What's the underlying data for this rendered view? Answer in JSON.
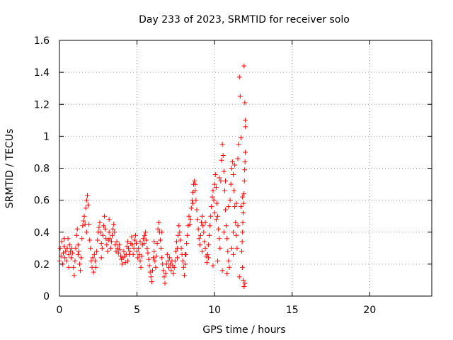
{
  "chart_data": {
    "type": "scatter",
    "title": "Day 233 of 2023, SRMTID for receiver solo",
    "xlabel": "GPS time / hours",
    "ylabel": "SRMTID / TECUs",
    "xlim": [
      0,
      24
    ],
    "ylim": [
      0,
      1.6
    ],
    "grid": true,
    "marker": "+",
    "colors": {
      "points": "#ff0000",
      "grid": "#a0a0a0",
      "axis": "#000000"
    },
    "x_ticks": [
      0,
      5,
      10,
      15,
      20
    ],
    "x_tick_labels": [
      "0",
      "5",
      "10",
      "15",
      "20"
    ],
    "y_ticks": [
      0,
      0.2,
      0.4,
      0.6,
      0.8,
      1.0,
      1.2,
      1.4,
      1.6
    ],
    "y_tick_labels": [
      "0",
      "0.2",
      "0.4",
      "0.6",
      "0.8",
      "1",
      "1.2",
      "1.4",
      "1.6"
    ],
    "series": [
      {
        "name": "SRMTID",
        "points": [
          [
            0.0,
            0.22
          ],
          [
            0.05,
            0.3
          ],
          [
            0.1,
            0.25
          ],
          [
            0.15,
            0.34
          ],
          [
            0.2,
            0.2
          ],
          [
            0.25,
            0.27
          ],
          [
            0.3,
            0.31
          ],
          [
            0.35,
            0.24
          ],
          [
            0.4,
            0.28
          ],
          [
            0.45,
            0.22
          ],
          [
            0.5,
            0.3
          ],
          [
            0.55,
            0.36
          ],
          [
            0.6,
            0.26
          ],
          [
            0.65,
            0.32
          ],
          [
            0.7,
            0.28
          ],
          [
            0.75,
            0.24
          ],
          [
            0.8,
            0.3
          ],
          [
            0.85,
            0.27
          ],
          [
            0.9,
            0.18
          ],
          [
            0.95,
            0.13
          ],
          [
            1.0,
            0.22
          ],
          [
            1.05,
            0.3
          ],
          [
            1.1,
            0.38
          ],
          [
            1.15,
            0.42
          ],
          [
            1.2,
            0.32
          ],
          [
            1.25,
            0.28
          ],
          [
            1.3,
            0.2
          ],
          [
            1.35,
            0.16
          ],
          [
            1.4,
            0.24
          ],
          [
            1.45,
            0.36
          ],
          [
            1.5,
            0.44
          ],
          [
            1.55,
            0.47
          ],
          [
            1.6,
            0.5
          ],
          [
            1.65,
            0.45
          ],
          [
            1.7,
            0.55
          ],
          [
            1.75,
            0.6
          ],
          [
            1.8,
            0.63
          ],
          [
            1.85,
            0.57
          ],
          [
            1.9,
            0.45
          ],
          [
            1.95,
            0.35
          ],
          [
            2.0,
            0.3
          ],
          [
            2.05,
            0.22
          ],
          [
            2.1,
            0.18
          ],
          [
            2.15,
            0.24
          ],
          [
            2.2,
            0.15
          ],
          [
            2.25,
            0.26
          ],
          [
            2.3,
            0.22
          ],
          [
            2.35,
            0.18
          ],
          [
            2.4,
            0.28
          ],
          [
            2.45,
            0.35
          ],
          [
            2.5,
            0.4
          ],
          [
            2.55,
            0.43
          ],
          [
            2.6,
            0.46
          ],
          [
            2.65,
            0.4
          ],
          [
            2.7,
            0.33
          ],
          [
            2.75,
            0.3
          ],
          [
            2.8,
            0.38
          ],
          [
            2.85,
            0.44
          ],
          [
            2.9,
            0.5
          ],
          [
            2.95,
            0.42
          ],
          [
            3.0,
            0.36
          ],
          [
            3.05,
            0.32
          ],
          [
            3.1,
            0.28
          ],
          [
            3.15,
            0.35
          ],
          [
            3.2,
            0.4
          ],
          [
            3.25,
            0.36
          ],
          [
            3.3,
            0.3
          ],
          [
            3.35,
            0.34
          ],
          [
            3.4,
            0.38
          ],
          [
            3.45,
            0.42
          ],
          [
            3.5,
            0.45
          ],
          [
            3.55,
            0.4
          ],
          [
            3.6,
            0.32
          ],
          [
            3.65,
            0.28
          ],
          [
            3.7,
            0.34
          ],
          [
            3.75,
            0.3
          ],
          [
            3.8,
            0.27
          ],
          [
            3.85,
            0.32
          ],
          [
            3.9,
            0.29
          ],
          [
            3.95,
            0.25
          ],
          [
            4.0,
            0.23
          ],
          [
            4.05,
            0.2
          ],
          [
            4.1,
            0.24
          ],
          [
            4.15,
            0.28
          ],
          [
            4.2,
            0.25
          ],
          [
            4.25,
            0.21
          ],
          [
            4.3,
            0.26
          ],
          [
            4.35,
            0.31
          ],
          [
            4.4,
            0.34
          ],
          [
            4.45,
            0.3
          ],
          [
            4.5,
            0.26
          ],
          [
            4.55,
            0.28
          ],
          [
            4.6,
            0.33
          ],
          [
            4.65,
            0.37
          ],
          [
            4.7,
            0.32
          ],
          [
            4.75,
            0.26
          ],
          [
            4.8,
            0.3
          ],
          [
            4.85,
            0.35
          ],
          [
            4.9,
            0.38
          ],
          [
            4.95,
            0.33
          ],
          [
            5.0,
            0.28
          ],
          [
            5.05,
            0.24
          ],
          [
            5.1,
            0.3
          ],
          [
            5.15,
            0.26
          ],
          [
            5.2,
            0.22
          ],
          [
            5.25,
            0.18
          ],
          [
            5.3,
            0.25
          ],
          [
            5.35,
            0.32
          ],
          [
            5.4,
            0.36
          ],
          [
            5.45,
            0.33
          ],
          [
            5.5,
            0.38
          ],
          [
            5.55,
            0.4
          ],
          [
            5.6,
            0.35
          ],
          [
            5.65,
            0.3
          ],
          [
            5.7,
            0.27
          ],
          [
            5.75,
            0.23
          ],
          [
            5.8,
            0.19
          ],
          [
            5.85,
            0.15
          ],
          [
            5.9,
            0.12
          ],
          [
            5.95,
            0.09
          ],
          [
            6.0,
            0.16
          ],
          [
            6.05,
            0.24
          ],
          [
            6.1,
            0.28
          ],
          [
            6.15,
            0.22
          ],
          [
            6.2,
            0.18
          ],
          [
            6.25,
            0.25
          ],
          [
            6.3,
            0.33
          ],
          [
            6.35,
            0.42
          ],
          [
            6.4,
            0.46
          ],
          [
            6.45,
            0.4
          ],
          [
            6.5,
            0.35
          ],
          [
            6.55,
            0.3
          ],
          [
            6.6,
            0.24
          ],
          [
            6.65,
            0.2
          ],
          [
            6.7,
            0.16
          ],
          [
            6.75,
            0.12
          ],
          [
            6.8,
            0.08
          ],
          [
            6.85,
            0.14
          ],
          [
            6.9,
            0.2
          ],
          [
            6.95,
            0.26
          ],
          [
            7.0,
            0.22
          ],
          [
            7.05,
            0.18
          ],
          [
            7.1,
            0.24
          ],
          [
            7.15,
            0.2
          ],
          [
            7.2,
            0.16
          ],
          [
            7.25,
            0.22
          ],
          [
            7.3,
            0.19
          ],
          [
            7.35,
            0.14
          ],
          [
            7.4,
            0.18
          ],
          [
            7.45,
            0.22
          ],
          [
            7.5,
            0.28
          ],
          [
            7.55,
            0.34
          ],
          [
            7.6,
            0.3
          ],
          [
            7.65,
            0.38
          ],
          [
            7.7,
            0.44
          ],
          [
            7.75,
            0.4
          ],
          [
            7.8,
            0.35
          ],
          [
            7.85,
            0.3
          ],
          [
            7.9,
            0.26
          ],
          [
            7.95,
            0.22
          ],
          [
            8.0,
            0.18
          ],
          [
            8.05,
            0.13
          ],
          [
            8.1,
            0.2
          ],
          [
            8.15,
            0.26
          ],
          [
            8.2,
            0.33
          ],
          [
            8.25,
            0.38
          ],
          [
            8.3,
            0.44
          ],
          [
            8.35,
            0.5
          ],
          [
            8.4,
            0.45
          ],
          [
            8.45,
            0.48
          ],
          [
            8.5,
            0.55
          ],
          [
            8.55,
            0.6
          ],
          [
            8.6,
            0.65
          ],
          [
            8.65,
            0.7
          ],
          [
            8.7,
            0.72
          ],
          [
            8.75,
            0.66
          ],
          [
            8.8,
            0.6
          ],
          [
            8.85,
            0.54
          ],
          [
            8.9,
            0.48
          ],
          [
            8.95,
            0.42
          ],
          [
            9.0,
            0.36
          ],
          [
            9.05,
            0.32
          ],
          [
            9.1,
            0.38
          ],
          [
            9.15,
            0.46
          ],
          [
            9.2,
            0.5
          ],
          [
            9.25,
            0.44
          ],
          [
            9.3,
            0.4
          ],
          [
            9.35,
            0.34
          ],
          [
            9.4,
            0.3
          ],
          [
            9.45,
            0.25
          ],
          [
            9.5,
            0.21
          ],
          [
            9.55,
            0.26
          ],
          [
            9.6,
            0.32
          ],
          [
            9.65,
            0.38
          ],
          [
            9.7,
            0.44
          ],
          [
            9.75,
            0.5
          ],
          [
            9.8,
            0.56
          ],
          [
            9.85,
            0.62
          ],
          [
            9.9,
            0.66
          ],
          [
            9.95,
            0.6
          ],
          [
            10.0,
            0.7
          ],
          [
            10.05,
            0.76
          ],
          [
            10.1,
            0.68
          ],
          [
            10.15,
            0.58
          ],
          [
            10.2,
            0.5
          ],
          [
            10.25,
            0.42
          ],
          [
            10.3,
            0.36
          ],
          [
            10.35,
            0.3
          ],
          [
            10.4,
            0.72
          ],
          [
            10.45,
            0.85
          ],
          [
            10.5,
            0.95
          ],
          [
            10.55,
            0.88
          ],
          [
            10.6,
            0.78
          ],
          [
            10.65,
            0.66
          ],
          [
            10.7,
            0.54
          ],
          [
            10.75,
            0.44
          ],
          [
            10.8,
            0.36
          ],
          [
            10.85,
            0.28
          ],
          [
            10.9,
            0.22
          ],
          [
            10.95,
            0.18
          ],
          [
            11.0,
            0.6
          ],
          [
            11.05,
            0.7
          ],
          [
            11.1,
            0.8
          ],
          [
            11.15,
            0.84
          ],
          [
            11.2,
            0.76
          ],
          [
            11.25,
            0.66
          ],
          [
            11.3,
            0.56
          ],
          [
            11.35,
            0.46
          ],
          [
            11.4,
            0.38
          ],
          [
            11.45,
            0.3
          ],
          [
            11.5,
            0.86
          ],
          [
            11.55,
            0.95
          ],
          [
            11.6,
            1.37
          ],
          [
            11.65,
            1.25
          ],
          [
            11.7,
            0.99
          ],
          [
            11.75,
            0.28
          ],
          [
            11.8,
            0.18
          ],
          [
            11.85,
            0.1
          ],
          [
            11.9,
            0.06
          ],
          [
            11.95,
            0.08
          ],
          [
            10.1,
            0.48
          ],
          [
            10.3,
            0.74
          ],
          [
            10.6,
            0.4
          ],
          [
            10.9,
            0.56
          ],
          [
            11.1,
            0.3
          ],
          [
            11.3,
            0.82
          ],
          [
            11.9,
            1.44
          ],
          [
            11.95,
            1.21
          ],
          [
            11.98,
            1.1
          ],
          [
            11.99,
            1.06
          ],
          [
            11.98,
            0.9
          ],
          [
            11.96,
            0.84
          ],
          [
            11.94,
            0.79
          ],
          [
            11.92,
            0.72
          ],
          [
            11.88,
            0.64
          ],
          [
            11.86,
            0.58
          ],
          [
            11.84,
            0.52
          ],
          [
            11.82,
            0.46
          ],
          [
            11.8,
            0.4
          ],
          [
            11.78,
            0.34
          ],
          [
            9.2,
            0.28
          ],
          [
            9.6,
            0.24
          ],
          [
            9.9,
            0.19
          ],
          [
            10.2,
            0.22
          ],
          [
            10.5,
            0.16
          ],
          [
            10.8,
            0.14
          ],
          [
            11.2,
            0.26
          ],
          [
            11.6,
            0.12
          ],
          [
            0.3,
            0.36
          ],
          [
            0.6,
            0.18
          ],
          [
            1.2,
            0.26
          ],
          [
            1.75,
            0.4
          ],
          [
            2.7,
            0.24
          ],
          [
            3.2,
            0.48
          ],
          [
            4.4,
            0.22
          ],
          [
            5.2,
            0.34
          ],
          [
            6.1,
            0.34
          ],
          [
            6.6,
            0.4
          ],
          [
            7.6,
            0.24
          ],
          [
            8.1,
            0.26
          ],
          [
            8.6,
            0.58
          ],
          [
            8.75,
            0.7
          ],
          [
            9.4,
            0.46
          ],
          [
            10.0,
            0.52
          ],
          [
            10.7,
            0.72
          ],
          [
            11.4,
            0.58
          ],
          [
            11.7,
            0.56
          ],
          [
            11.8,
            0.62
          ],
          [
            11.5,
            0.44
          ],
          [
            11.2,
            0.4
          ]
        ]
      }
    ]
  }
}
